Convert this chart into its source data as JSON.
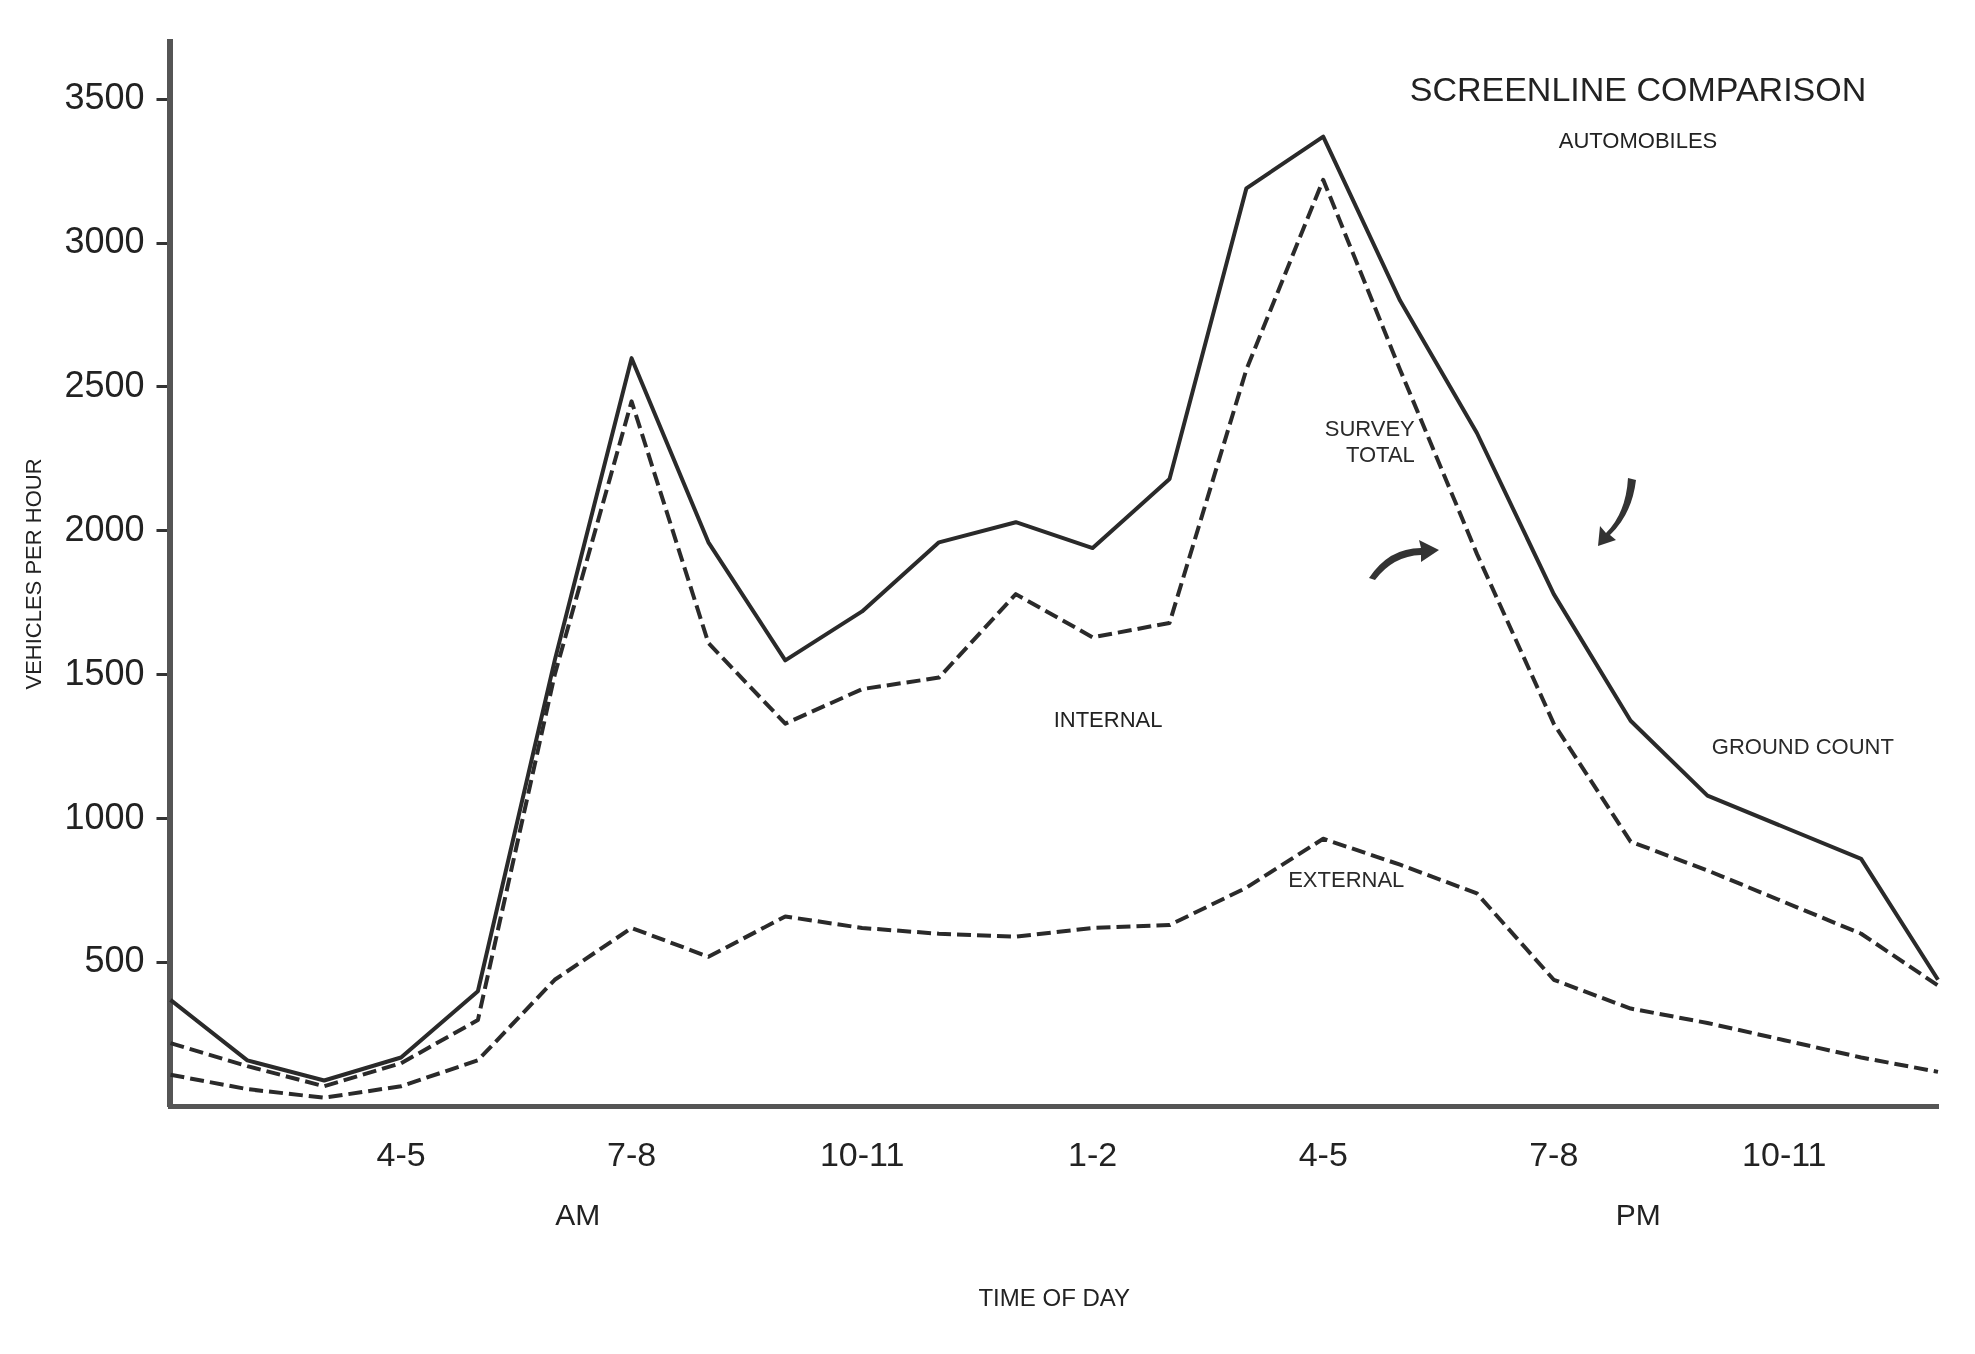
{
  "chart_data": {
    "type": "line",
    "title": "SCREENLINE COMPARISON",
    "subtitle": "AUTOMOBILES",
    "xlabel": "TIME OF DAY",
    "ylabel": "VEHICLES PER HOUR",
    "categories": [
      null,
      null,
      null,
      "4-5",
      null,
      null,
      "7-8",
      null,
      null,
      "10-11",
      null,
      null,
      "1-2",
      null,
      null,
      "4-5",
      null,
      null,
      "7-8",
      null,
      null,
      "10-11",
      null,
      null
    ],
    "series": [
      {
        "name": "GROUND COUNT",
        "color": "#2a2a2a",
        "line_style": "solid",
        "values": [
          370,
          160,
          90,
          170,
          400,
          1550,
          2600,
          1960,
          1550,
          1720,
          1960,
          2030,
          1940,
          2180,
          3190,
          3370,
          2800,
          2340,
          1780,
          1340,
          1080,
          970,
          860,
          440
        ]
      },
      {
        "name": "SURVEY TOTAL",
        "color": "#2a2a2a",
        "line_style": "dashed",
        "values": [
          220,
          140,
          70,
          150,
          300,
          1500,
          2450,
          1610,
          1330,
          1450,
          1490,
          1780,
          1630,
          1680,
          2560,
          3220,
          2560,
          1920,
          1330,
          920,
          820,
          710,
          600,
          420
        ]
      },
      {
        "name": "EXTERNAL",
        "color": "#2a2a2a",
        "line_style": "dashed",
        "values": [
          110,
          60,
          30,
          70,
          160,
          440,
          620,
          520,
          660,
          620,
          600,
          590,
          620,
          630,
          760,
          930,
          840,
          740,
          440,
          340,
          290,
          230,
          170,
          120
        ]
      }
    ],
    "annotations": [
      "INTERNAL",
      "AM",
      "PM"
    ],
    "ylim": [
      0,
      3700
    ],
    "yticks": [
      500,
      1000,
      1500,
      2000,
      2500,
      3000,
      3500
    ],
    "grid": false,
    "legend": false,
    "marker": "none"
  }
}
